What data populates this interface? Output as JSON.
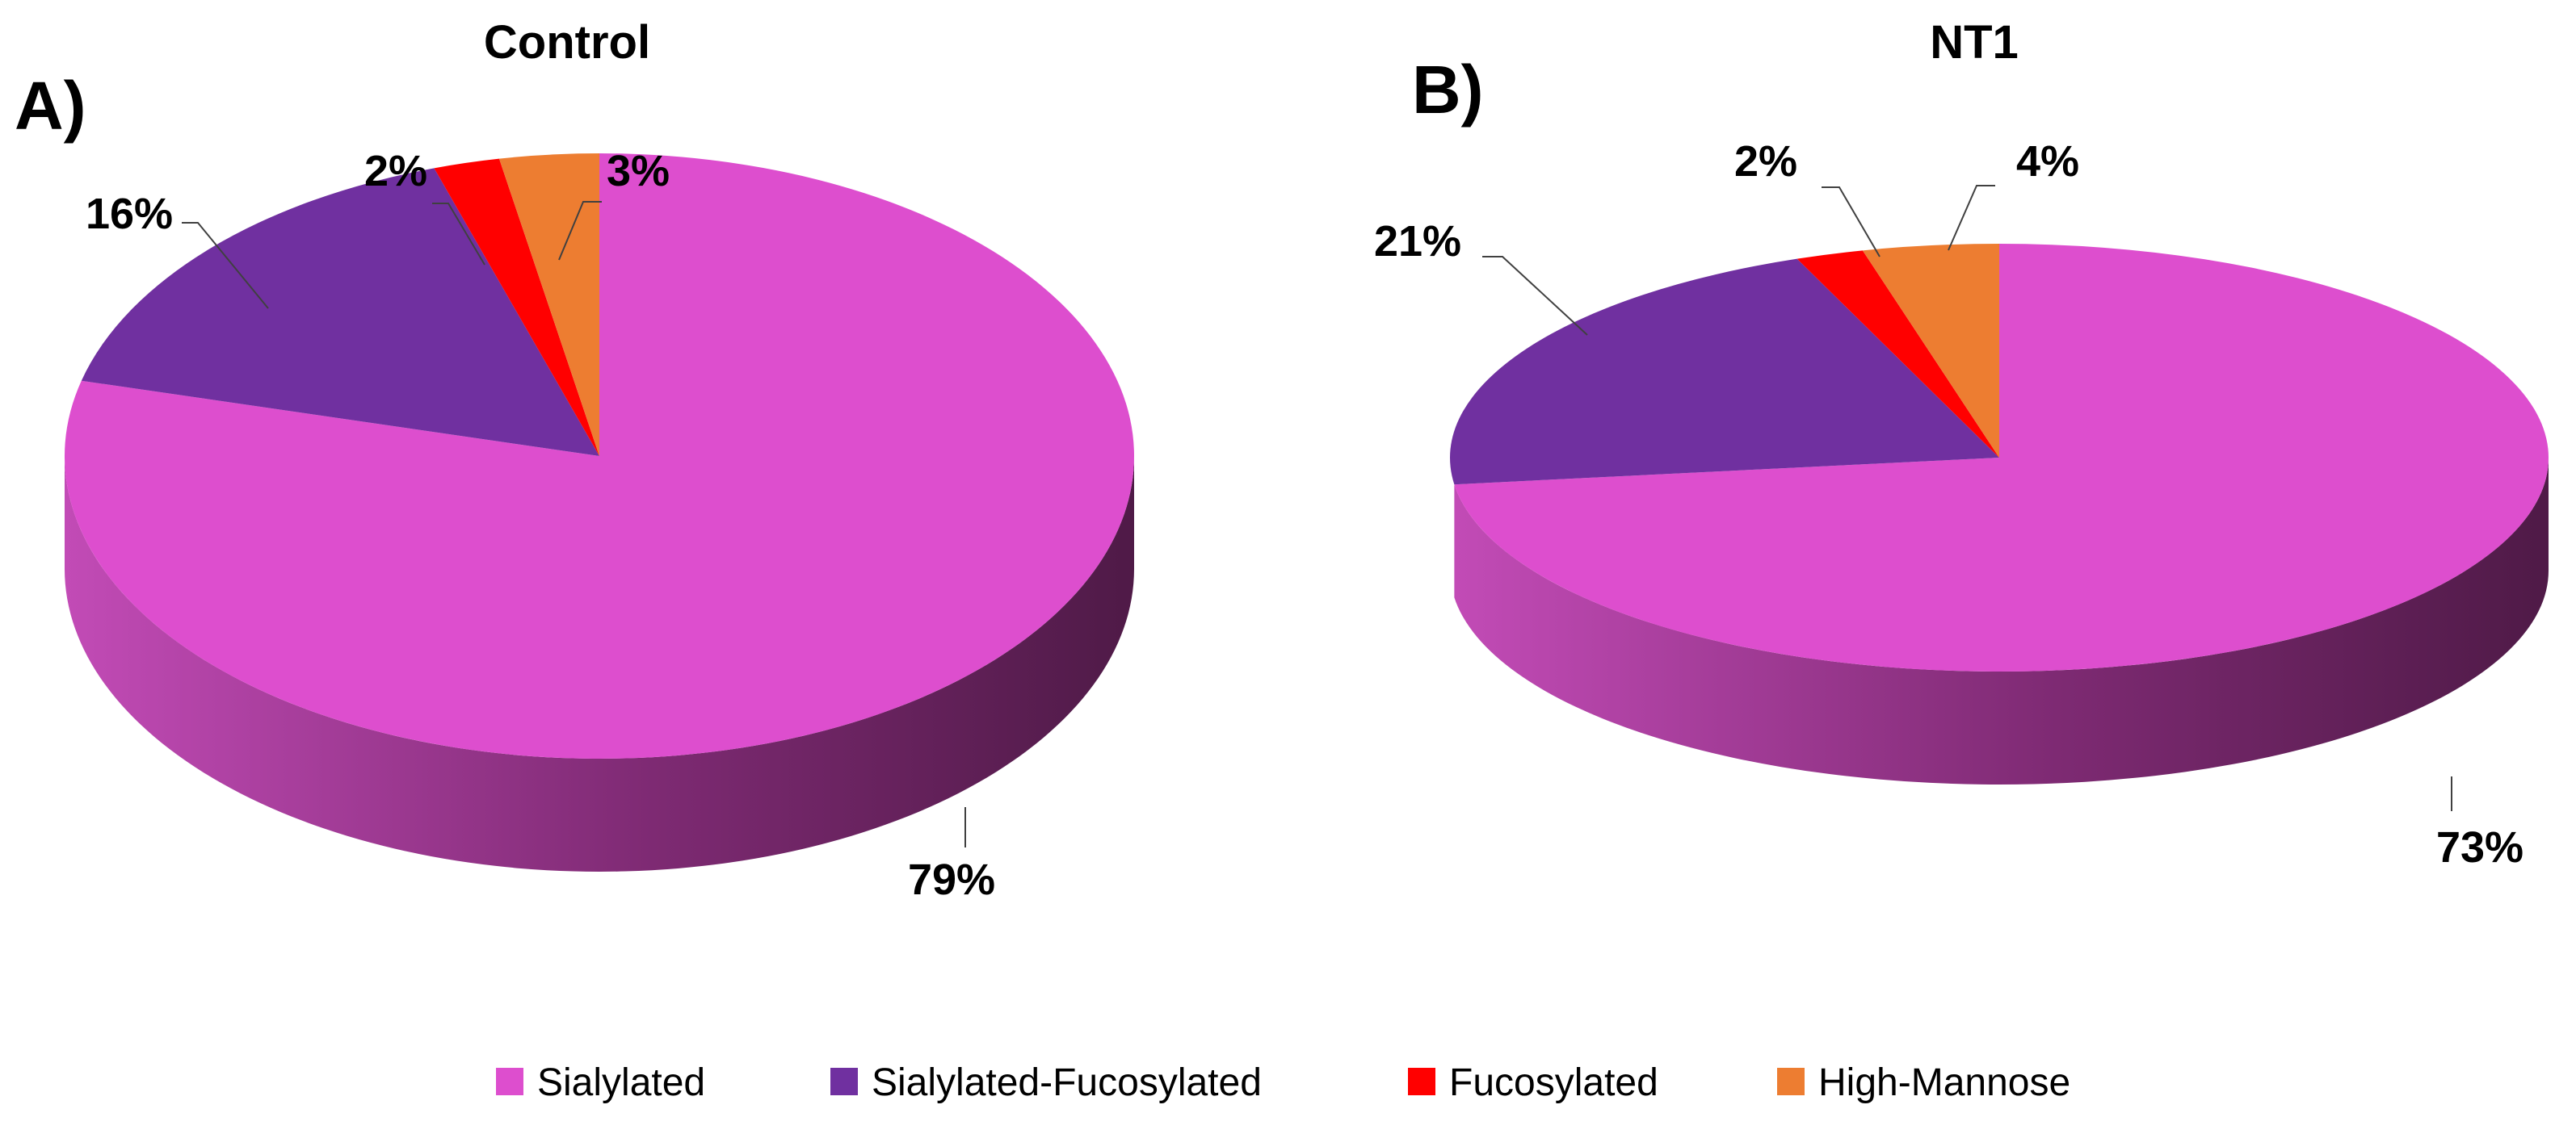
{
  "chart_data": [
    {
      "type": "pie",
      "panel": "A)",
      "title": "Control",
      "categories": [
        "Sialylated",
        "Sialylated-Fucosylated",
        "Fucosylated",
        "High-Mannose"
      ],
      "values": [
        79,
        16,
        2,
        3
      ],
      "value_labels": [
        "79%",
        "16%",
        "2%",
        "3%"
      ],
      "style": "3d",
      "legend_position": "bottom"
    },
    {
      "type": "pie",
      "panel": "B)",
      "title": "NT1",
      "categories": [
        "Sialylated",
        "Sialylated-Fucosylated",
        "Fucosylated",
        "High-Mannose"
      ],
      "values": [
        73,
        21,
        2,
        4
      ],
      "value_labels": [
        "73%",
        "21%",
        "2%",
        "4%"
      ],
      "style": "3d",
      "legend_position": "bottom"
    }
  ],
  "legend": [
    {
      "label": "Sialylated",
      "color": "#DD4ECE"
    },
    {
      "label": "Sialylated-Fucosylated",
      "color": "#7030A0"
    },
    {
      "label": "Fucosylated",
      "color": "#FF0000"
    },
    {
      "label": "High-Mannose",
      "color": "#ED7D31"
    }
  ],
  "colors": {
    "sialylated_side_light": "#C24BB6",
    "sialylated_side_dark": "#4F1A47"
  }
}
